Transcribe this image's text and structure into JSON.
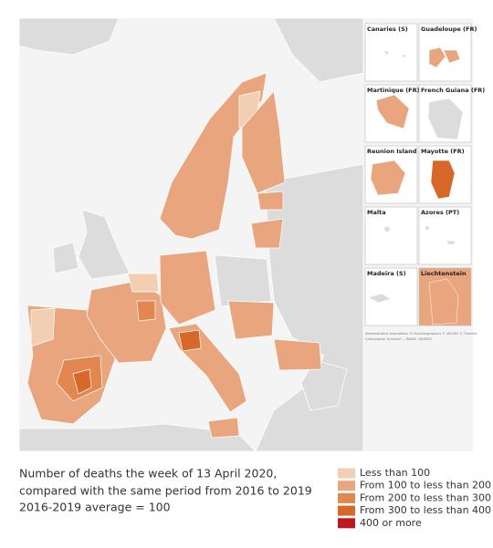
{
  "caption": [
    "Number of deaths the week of 13 April 2020,",
    "compared with the same period from 2016 to 2019",
    "2016-2019 average = 100"
  ],
  "legend": [
    {
      "label": "Less than 100",
      "color": "#f2cfb3"
    },
    {
      "label": "From 100 to less than 200",
      "color": "#e8a57e"
    },
    {
      "label": "From 200 to less than 300",
      "color": "#e2874f"
    },
    {
      "label": "From 300 to less than 400",
      "color": "#d8672a"
    },
    {
      "label": "400 or more",
      "color": "#c0171f"
    }
  ],
  "insets": [
    "Canaries (S)",
    "Guadeloupe (FR)",
    "Martinique (FR)",
    "French Guiana (FR)",
    "Reunion Island (FR)",
    "Mayotte (FR)",
    "Malta",
    "Azores (PT)",
    "Madeira (S)",
    "Liechtenstein"
  ],
  "attribution": [
    "Administrative boundaries: © EuroGeographics © UN-FAO © Turkstat",
    "Cartography: Eurostat — IMAGE, 06/2020"
  ]
}
